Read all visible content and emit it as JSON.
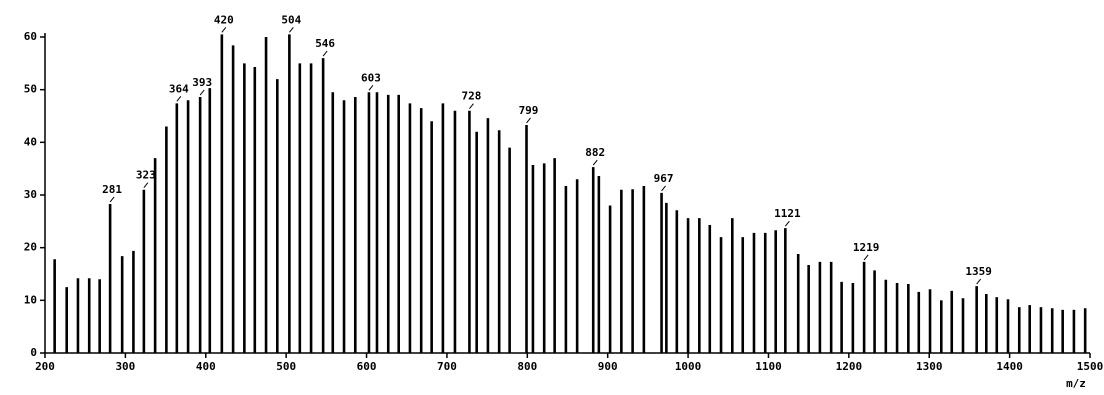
{
  "chart_data": {
    "type": "stick",
    "x_label": "m/z",
    "xlim": [
      200,
      1500
    ],
    "xticks": [
      200,
      300,
      400,
      500,
      600,
      700,
      800,
      900,
      1000,
      1100,
      1200,
      1300,
      1400,
      1500
    ],
    "ylim": [
      0,
      60
    ],
    "yticks": [
      0,
      10,
      20,
      30,
      40,
      50,
      60
    ],
    "color": "#000000",
    "x": [
      212,
      227,
      241,
      255,
      268,
      281,
      296,
      310,
      323,
      337,
      351,
      364,
      378,
      393,
      405,
      420,
      434,
      448,
      461,
      475,
      489,
      504,
      517,
      531,
      546,
      558,
      572,
      586,
      603,
      613,
      627,
      640,
      654,
      668,
      681,
      695,
      710,
      728,
      737,
      751,
      765,
      778,
      799,
      807,
      821,
      834,
      848,
      862,
      882,
      889,
      903,
      917,
      931,
      945,
      967,
      973,
      986,
      1000,
      1014,
      1027,
      1041,
      1055,
      1068,
      1082,
      1096,
      1109,
      1121,
      1137,
      1150,
      1164,
      1178,
      1191,
      1205,
      1219,
      1232,
      1246,
      1260,
      1274,
      1287,
      1301,
      1315,
      1328,
      1342,
      1359,
      1371,
      1384,
      1398,
      1412,
      1425,
      1439,
      1453,
      1466,
      1480,
      1494
    ],
    "values": [
      17.8,
      12.5,
      14.2,
      14.2,
      14,
      28.3,
      18.4,
      19.4,
      31,
      37,
      43,
      47.4,
      48,
      48.6,
      50.3,
      60.5,
      58.4,
      55,
      54.3,
      60,
      52,
      60.5,
      55,
      55,
      56,
      49.5,
      48,
      48.6,
      49.5,
      49.5,
      49,
      49,
      47.4,
      46.5,
      44,
      47.4,
      46,
      46,
      42,
      44.6,
      42.3,
      39,
      43.3,
      35.7,
      36,
      37,
      31.7,
      33,
      35.3,
      33.6,
      28,
      31,
      31.1,
      31.7,
      30.4,
      28.5,
      27.1,
      25.6,
      25.6,
      24.3,
      22,
      25.6,
      22,
      22.8,
      22.8,
      23.3,
      23.7,
      18.8,
      16.7,
      17.3,
      17.3,
      13.5,
      13.3,
      17.3,
      15.7,
      13.9,
      13.3,
      13.1,
      11.6,
      12.1,
      10,
      11.8,
      10.4,
      12.7,
      11.2,
      10.6,
      10.2,
      8.7,
      9.1,
      8.7,
      8.5,
      8.2,
      8.2,
      8.5
    ],
    "labeled_peaks": [
      281,
      323,
      364,
      393,
      420,
      504,
      546,
      603,
      728,
      799,
      882,
      967,
      1121,
      1219,
      1359
    ]
  }
}
